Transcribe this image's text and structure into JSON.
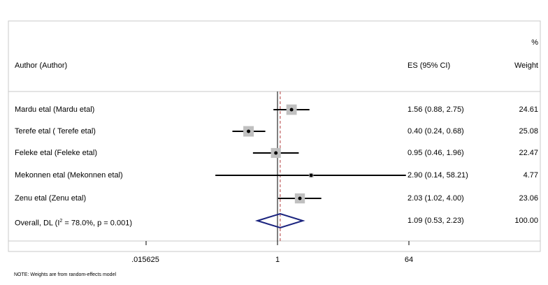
{
  "header": {
    "author_col": "Author (Author)",
    "es_col": "ES (95% CI)",
    "weight_symbol": "%",
    "weight_col": "Weight"
  },
  "chart_data": {
    "type": "forest",
    "scale": "log",
    "xticks": [
      0.015625,
      1,
      64
    ],
    "xtick_labels": [
      ".015625",
      "1",
      "64"
    ],
    "null_line": 1,
    "studies": [
      {
        "label": "Mardu etal (Mardu etal)",
        "es": 1.56,
        "lo": 0.88,
        "hi": 2.75,
        "es_text": "1.56 (0.88, 2.75)",
        "weight": 24.61,
        "weight_text": "24.61"
      },
      {
        "label": "Terefe etal ( Terefe etal)",
        "es": 0.4,
        "lo": 0.24,
        "hi": 0.68,
        "es_text": "0.40 (0.24, 0.68)",
        "weight": 25.08,
        "weight_text": "25.08"
      },
      {
        "label": "Feleke etal (Feleke etal)",
        "es": 0.95,
        "lo": 0.46,
        "hi": 1.96,
        "es_text": "0.95 (0.46, 1.96)",
        "weight": 22.47,
        "weight_text": "22.47"
      },
      {
        "label": "Mekonnen etal (Mekonnen etal)",
        "es": 2.9,
        "lo": 0.14,
        "hi": 58.21,
        "es_text": "2.90 (0.14, 58.21)",
        "weight": 4.77,
        "weight_text": "4.77"
      },
      {
        "label": "Zenu etal (Zenu etal)",
        "es": 2.03,
        "lo": 1.02,
        "hi": 4.0,
        "es_text": "2.03 (1.02, 4.00)",
        "weight": 23.06,
        "weight_text": "23.06"
      }
    ],
    "overall": {
      "label_prefix": "Overall, DL (I",
      "label_sup": "2",
      "label_suffix": " = 78.0%, p = 0.001)",
      "es": 1.09,
      "lo": 0.53,
      "hi": 2.23,
      "es_text": "1.09 (0.53, 2.23)",
      "weight_text": "100.00"
    },
    "note": "NOTE: Weights are from random-effects model",
    "colors": {
      "frame": "#c8c8c8",
      "box": "#c0c0c0",
      "diamond": "#1a237e",
      "null_line": "#000000",
      "overall_line": "#b03a3a"
    }
  }
}
